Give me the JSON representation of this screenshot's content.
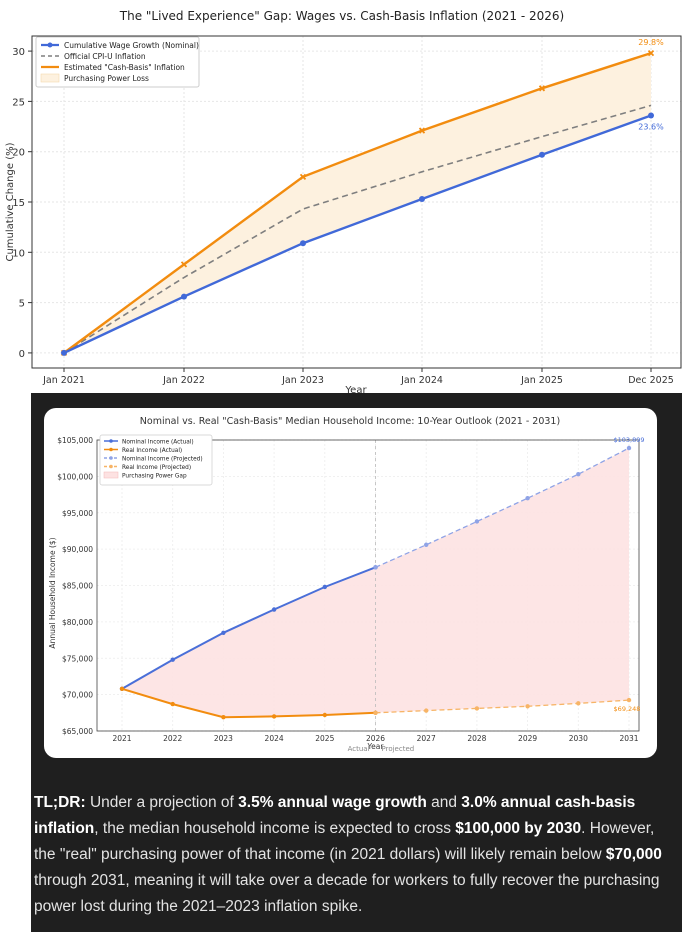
{
  "chart_data": [
    {
      "type": "line",
      "title": "The \"Lived Experience\" Gap: Wages vs. Cash-Basis Inflation (2021 - 2026)",
      "xlabel": "Year",
      "ylabel": "Cumulative Change (%)",
      "x_ticks": [
        "Jan 2021",
        "Jan 2022",
        "Jan 2023",
        "Jan 2024",
        "Jan 2025",
        "Dec 2025"
      ],
      "y_ticks": [
        0,
        5,
        10,
        15,
        20,
        25,
        30
      ],
      "ylim": [
        -1.5,
        31.5
      ],
      "grid": true,
      "legend_position": "top-left",
      "legend": [
        "Cumulative Wage Growth (Nominal)",
        "Official CPI-U Inflation",
        "Estimated \"Cash-Basis\" Inflation",
        "Purchasing Power Loss"
      ],
      "series": [
        {
          "name": "Cumulative Wage Growth (Nominal)",
          "values": [
            0,
            5.6,
            10.9,
            15.3,
            19.7,
            23.6
          ],
          "color": "#4169d8",
          "marker": "circle"
        },
        {
          "name": "Official CPI-U Inflation",
          "values": [
            0,
            7.5,
            14.3,
            18,
            21.5,
            24.6
          ],
          "color": "#7f7f7f",
          "style": "dashed"
        },
        {
          "name": "Estimated \"Cash-Basis\" Inflation",
          "values": [
            0,
            8.8,
            17.5,
            22.1,
            26.3,
            29.8
          ],
          "color": "#f28c0f",
          "marker": "x"
        }
      ],
      "fill": {
        "name": "Purchasing Power Loss",
        "between": [
          "Cumulative Wage Growth (Nominal)",
          "Estimated \"Cash-Basis\" Inflation"
        ],
        "color": "#fdf1df"
      },
      "annotations": [
        {
          "text": "29.8%",
          "series": "Estimated \"Cash-Basis\" Inflation",
          "color": "#f28c0f"
        },
        {
          "text": "23.6%",
          "series": "Cumulative Wage Growth (Nominal)",
          "color": "#4169d8"
        }
      ]
    },
    {
      "type": "line",
      "title": "Nominal vs. Real \"Cash-Basis\" Median Household Income: 10-Year Outlook (2021 - 2031)",
      "xlabel": "Year",
      "ylabel": "Annual Household Income ($)",
      "x": [
        2021,
        2022,
        2023,
        2024,
        2025,
        2026,
        2027,
        2028,
        2029,
        2030,
        2031
      ],
      "y_ticks": [
        "$65,000",
        "$70,000",
        "$75,000",
        "$80,000",
        "$85,000",
        "$90,000",
        "$95,000",
        "$100,000",
        "$105,000"
      ],
      "ylim": [
        65000,
        105000
      ],
      "divider_x": 2026,
      "divider_labels": [
        "Actual",
        "Projected"
      ],
      "grid": true,
      "legend_position": "top-left",
      "legend": [
        "Nominal Income (Actual)",
        "Real Income (Actual)",
        "Nominal Income (Projected)",
        "Real Income (Projected)",
        "Purchasing Power Gap"
      ],
      "series": [
        {
          "name": "Nominal Income (Actual)",
          "x": [
            2021,
            2022,
            2023,
            2024,
            2025,
            2026
          ],
          "values": [
            70800,
            74800,
            78500,
            81700,
            84800,
            87500
          ],
          "color": "#4a6fd8"
        },
        {
          "name": "Real Income (Actual)",
          "x": [
            2021,
            2022,
            2023,
            2024,
            2025,
            2026
          ],
          "values": [
            70800,
            68700,
            66900,
            67000,
            67200,
            67500
          ],
          "color": "#f28c0f"
        },
        {
          "name": "Nominal Income (Projected)",
          "x": [
            2026,
            2027,
            2028,
            2029,
            2030,
            2031
          ],
          "values": [
            87500,
            90600,
            93800,
            97000,
            100300,
            103899
          ],
          "color": "#8fa3e6",
          "style": "dashed"
        },
        {
          "name": "Real Income (Projected)",
          "x": [
            2026,
            2027,
            2028,
            2029,
            2030,
            2031
          ],
          "values": [
            67500,
            67800,
            68100,
            68400,
            68800,
            69248
          ],
          "color": "#f7b466",
          "style": "dashed"
        }
      ],
      "fill": {
        "name": "Purchasing Power Gap",
        "color": "#fde2e2"
      },
      "annotations": [
        {
          "text": "$103,899",
          "series": "Nominal Income (Projected)",
          "color": "#4a6fd8"
        },
        {
          "text": "$69,248",
          "series": "Real Income (Projected)",
          "color": "#f28c0f"
        }
      ]
    }
  ],
  "tldr": {
    "label": "TL;DR:",
    "t1": " Under a projection of ",
    "b1": "3.5% annual wage growth",
    "t2": " and ",
    "b2": "3.0% annual cash-basis inflation",
    "t3": ", the median household income is expected to cross ",
    "b3": "$100,000 by 2030",
    "t4": ". However, the \"real\" purchasing power of that income (in 2021 dollars) will likely remain below ",
    "b4": "$70,000",
    "t5": " through 2031, meaning it will take over a decade for workers to fully recover the purchasing power lost during the 2021–2023 inflation spike."
  }
}
